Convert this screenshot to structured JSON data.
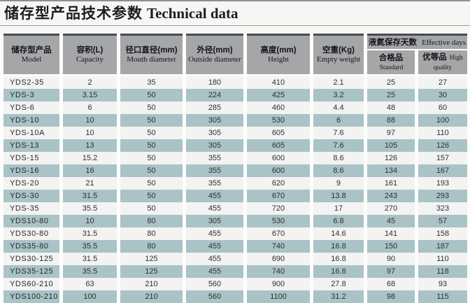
{
  "title": {
    "zh": "储存型产品技术参数",
    "en": "Technical data"
  },
  "table": {
    "columns": [
      {
        "zh": "储存型产品",
        "en": "Model"
      },
      {
        "zh": "容积(L)",
        "en": "Capacity"
      },
      {
        "zh": "径口直径(mm)",
        "en": "Mouth diameter"
      },
      {
        "zh": "外径(mm)",
        "en": "Outside diameter"
      },
      {
        "zh": "高度(mm)",
        "en": "Height"
      },
      {
        "zh": "空重(Kg)",
        "en": "Empty weight"
      }
    ],
    "days_group": {
      "zh": "液氮保存天数",
      "en": "Effective days",
      "sub": [
        {
          "zh": "合格品",
          "en": "Standard"
        },
        {
          "zh": "优等品",
          "en": "High quality"
        }
      ]
    },
    "rows": [
      [
        "YDS2-35",
        "2",
        "35",
        "180",
        "410",
        "2.1",
        "25",
        "27"
      ],
      [
        "YDS-3",
        "3.15",
        "50",
        "224",
        "425",
        "3.2",
        "25",
        "30"
      ],
      [
        "YDS-6",
        "6",
        "50",
        "285",
        "460",
        "4.4",
        "48",
        "60"
      ],
      [
        "YDS-10",
        "10",
        "50",
        "305",
        "530",
        "6",
        "88",
        "100"
      ],
      [
        "YDS-10A",
        "10",
        "50",
        "305",
        "605",
        "7.6",
        "97",
        "110"
      ],
      [
        "YDS-13",
        "13",
        "50",
        "305",
        "605",
        "7.6",
        "105",
        "126"
      ],
      [
        "YDS-15",
        "15.2",
        "50",
        "355",
        "600",
        "8.6",
        "126",
        "157"
      ],
      [
        "YDS-16",
        "16",
        "50",
        "355",
        "600",
        "8.6",
        "134",
        "167"
      ],
      [
        "YDS-20",
        "21",
        "50",
        "355",
        "620",
        "9",
        "161",
        "193"
      ],
      [
        "YDS-30",
        "31.5",
        "50",
        "455",
        "670",
        "13.8",
        "243",
        "293"
      ],
      [
        "YDS-35",
        "35.5",
        "50",
        "455",
        "720",
        "17",
        "270",
        "323"
      ],
      [
        "YDS10-80",
        "10",
        "80",
        "305",
        "530",
        "6.8",
        "45",
        "57"
      ],
      [
        "YDS30-80",
        "31.5",
        "80",
        "455",
        "670",
        "14.6",
        "141",
        "158"
      ],
      [
        "YDS35-80",
        "35.5",
        "80",
        "455",
        "740",
        "16.8",
        "150",
        "187"
      ],
      [
        "YDS30-125",
        "31.5",
        "125",
        "455",
        "690",
        "16.8",
        "90",
        "110"
      ],
      [
        "YDS35-125",
        "35.5",
        "125",
        "455",
        "740",
        "16.8",
        "97",
        "118"
      ],
      [
        "YDS60-210",
        "63",
        "210",
        "560",
        "900",
        "27.8",
        "68",
        "93"
      ],
      [
        "YDS100-210",
        "100",
        "210",
        "560",
        "1100",
        "31.2",
        "98",
        "115"
      ]
    ]
  },
  "colors": {
    "header_bg": "#a5a6a8",
    "header_top_border": "#474a53",
    "stripe_teal": "#a9c3c7",
    "stripe_white": "#f3f3f1",
    "page_bg": "#f6f6f4"
  }
}
